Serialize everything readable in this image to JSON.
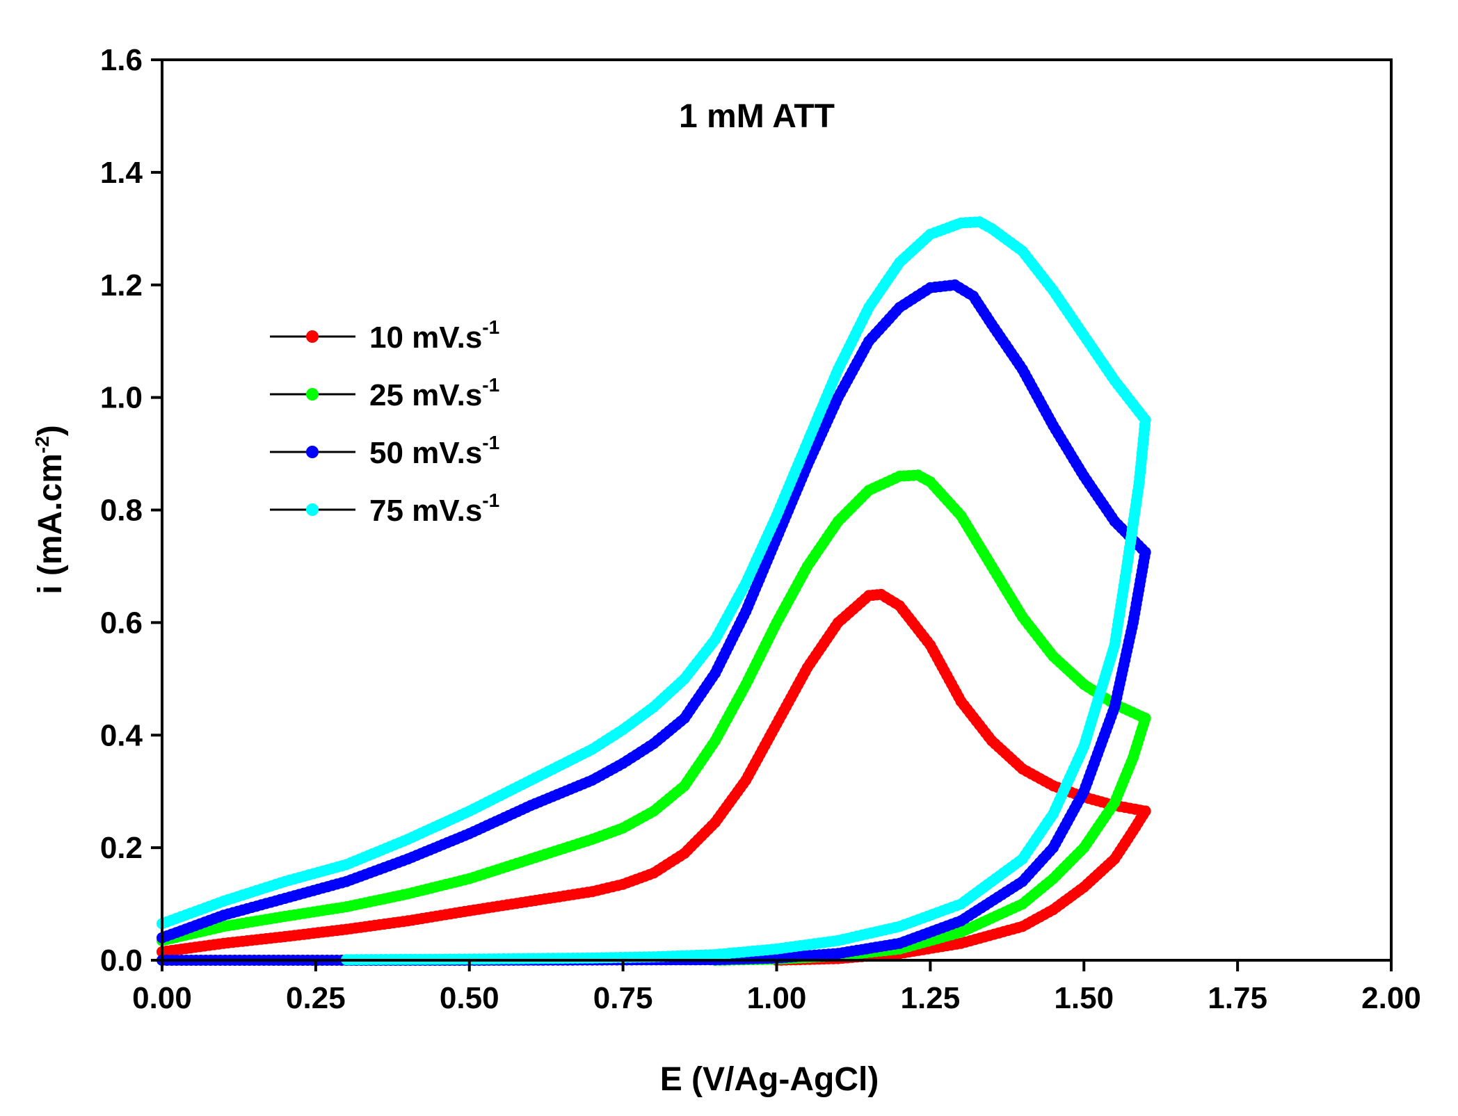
{
  "chart_data": {
    "type": "line",
    "title": "1 mM ATT",
    "xlabel": "E (V/Ag-AgCl)",
    "ylabel": "i (mA.cm",
    "ylabel_unit_exponent": "-2",
    "ylabel_tail": ")",
    "xlim": [
      0.0,
      2.0
    ],
    "ylim": [
      0.0,
      1.6
    ],
    "x_ticks": [
      0.0,
      0.25,
      0.5,
      0.75,
      1.0,
      1.25,
      1.5,
      1.75,
      2.0
    ],
    "x_tick_labels": [
      "0.00",
      "0.25",
      "0.50",
      "0.75",
      "1.00",
      "1.25",
      "1.50",
      "1.75",
      "2.00"
    ],
    "y_ticks": [
      0.0,
      0.2,
      0.4,
      0.6,
      0.8,
      1.0,
      1.2,
      1.4,
      1.6
    ],
    "y_tick_labels": [
      "0.0",
      "0.2",
      "0.4",
      "0.6",
      "0.8",
      "1.0",
      "1.2",
      "1.4",
      "1.6"
    ],
    "grid": false,
    "legend_position": "upper-left",
    "series": [
      {
        "name": "10 mV.s",
        "unit_exponent": "-1",
        "color": "#ff0000",
        "forward": [
          [
            0.0,
            0.015
          ],
          [
            0.1,
            0.03
          ],
          [
            0.2,
            0.042
          ],
          [
            0.3,
            0.055
          ],
          [
            0.4,
            0.07
          ],
          [
            0.5,
            0.088
          ],
          [
            0.6,
            0.105
          ],
          [
            0.7,
            0.122
          ],
          [
            0.75,
            0.135
          ],
          [
            0.8,
            0.155
          ],
          [
            0.85,
            0.19
          ],
          [
            0.9,
            0.245
          ],
          [
            0.95,
            0.32
          ],
          [
            1.0,
            0.42
          ],
          [
            1.05,
            0.52
          ],
          [
            1.1,
            0.6
          ],
          [
            1.15,
            0.648
          ],
          [
            1.17,
            0.65
          ],
          [
            1.2,
            0.63
          ],
          [
            1.25,
            0.56
          ],
          [
            1.3,
            0.46
          ],
          [
            1.35,
            0.39
          ],
          [
            1.4,
            0.34
          ],
          [
            1.45,
            0.31
          ],
          [
            1.5,
            0.29
          ],
          [
            1.55,
            0.275
          ],
          [
            1.6,
            0.265
          ]
        ],
        "reverse": [
          [
            1.6,
            0.265
          ],
          [
            1.58,
            0.23
          ],
          [
            1.55,
            0.18
          ],
          [
            1.5,
            0.13
          ],
          [
            1.45,
            0.09
          ],
          [
            1.4,
            0.06
          ],
          [
            1.3,
            0.03
          ],
          [
            1.2,
            0.012
          ],
          [
            1.1,
            0.003
          ],
          [
            1.0,
            0.0
          ]
        ]
      },
      {
        "name": "25 mV.s",
        "unit_exponent": "-1",
        "color": "#00ff00",
        "forward": [
          [
            0.0,
            0.035
          ],
          [
            0.1,
            0.06
          ],
          [
            0.2,
            0.078
          ],
          [
            0.3,
            0.095
          ],
          [
            0.4,
            0.118
          ],
          [
            0.5,
            0.145
          ],
          [
            0.6,
            0.18
          ],
          [
            0.7,
            0.215
          ],
          [
            0.75,
            0.235
          ],
          [
            0.8,
            0.265
          ],
          [
            0.85,
            0.31
          ],
          [
            0.9,
            0.39
          ],
          [
            0.95,
            0.49
          ],
          [
            1.0,
            0.6
          ],
          [
            1.05,
            0.7
          ],
          [
            1.1,
            0.78
          ],
          [
            1.15,
            0.835
          ],
          [
            1.2,
            0.86
          ],
          [
            1.23,
            0.862
          ],
          [
            1.25,
            0.85
          ],
          [
            1.3,
            0.79
          ],
          [
            1.35,
            0.7
          ],
          [
            1.4,
            0.61
          ],
          [
            1.45,
            0.54
          ],
          [
            1.5,
            0.49
          ],
          [
            1.55,
            0.455
          ],
          [
            1.6,
            0.43
          ]
        ],
        "reverse": [
          [
            1.6,
            0.43
          ],
          [
            1.58,
            0.36
          ],
          [
            1.55,
            0.28
          ],
          [
            1.5,
            0.2
          ],
          [
            1.45,
            0.145
          ],
          [
            1.4,
            0.1
          ],
          [
            1.3,
            0.05
          ],
          [
            1.2,
            0.02
          ],
          [
            1.1,
            0.008
          ],
          [
            1.0,
            0.002
          ],
          [
            0.9,
            0.0
          ]
        ]
      },
      {
        "name": "50 mV.s",
        "unit_exponent": "-1",
        "color": "#0000ff",
        "forward": [
          [
            0.0,
            0.04
          ],
          [
            0.1,
            0.08
          ],
          [
            0.2,
            0.11
          ],
          [
            0.3,
            0.14
          ],
          [
            0.4,
            0.18
          ],
          [
            0.5,
            0.225
          ],
          [
            0.6,
            0.275
          ],
          [
            0.7,
            0.32
          ],
          [
            0.75,
            0.35
          ],
          [
            0.8,
            0.385
          ],
          [
            0.85,
            0.43
          ],
          [
            0.9,
            0.51
          ],
          [
            0.95,
            0.62
          ],
          [
            1.0,
            0.75
          ],
          [
            1.05,
            0.88
          ],
          [
            1.1,
            1.0
          ],
          [
            1.15,
            1.1
          ],
          [
            1.2,
            1.16
          ],
          [
            1.25,
            1.195
          ],
          [
            1.29,
            1.2
          ],
          [
            1.32,
            1.18
          ],
          [
            1.35,
            1.13
          ],
          [
            1.4,
            1.05
          ],
          [
            1.45,
            0.95
          ],
          [
            1.5,
            0.86
          ],
          [
            1.55,
            0.78
          ],
          [
            1.6,
            0.725
          ]
        ],
        "reverse": [
          [
            1.6,
            0.725
          ],
          [
            1.58,
            0.6
          ],
          [
            1.55,
            0.45
          ],
          [
            1.5,
            0.3
          ],
          [
            1.45,
            0.2
          ],
          [
            1.4,
            0.14
          ],
          [
            1.3,
            0.07
          ],
          [
            1.2,
            0.03
          ],
          [
            1.1,
            0.012
          ],
          [
            1.0,
            0.004
          ],
          [
            0.9,
            0.001
          ],
          [
            0.5,
            0.0
          ],
          [
            0.3,
            0.0
          ],
          [
            0.0,
            0.0
          ]
        ]
      },
      {
        "name": "75 mV.s",
        "unit_exponent": "-1",
        "color": "#00ffff",
        "forward": [
          [
            0.0,
            0.065
          ],
          [
            0.1,
            0.105
          ],
          [
            0.2,
            0.14
          ],
          [
            0.3,
            0.17
          ],
          [
            0.4,
            0.215
          ],
          [
            0.5,
            0.265
          ],
          [
            0.6,
            0.32
          ],
          [
            0.7,
            0.375
          ],
          [
            0.75,
            0.41
          ],
          [
            0.8,
            0.45
          ],
          [
            0.85,
            0.5
          ],
          [
            0.9,
            0.57
          ],
          [
            0.95,
            0.67
          ],
          [
            1.0,
            0.79
          ],
          [
            1.05,
            0.92
          ],
          [
            1.1,
            1.05
          ],
          [
            1.15,
            1.16
          ],
          [
            1.2,
            1.24
          ],
          [
            1.25,
            1.29
          ],
          [
            1.3,
            1.31
          ],
          [
            1.33,
            1.312
          ],
          [
            1.35,
            1.3
          ],
          [
            1.4,
            1.26
          ],
          [
            1.45,
            1.19
          ],
          [
            1.5,
            1.11
          ],
          [
            1.55,
            1.03
          ],
          [
            1.6,
            0.96
          ]
        ],
        "reverse": [
          [
            1.6,
            0.96
          ],
          [
            1.59,
            0.85
          ],
          [
            1.57,
            0.7
          ],
          [
            1.55,
            0.56
          ],
          [
            1.5,
            0.38
          ],
          [
            1.45,
            0.26
          ],
          [
            1.4,
            0.18
          ],
          [
            1.3,
            0.1
          ],
          [
            1.2,
            0.06
          ],
          [
            1.1,
            0.035
          ],
          [
            1.0,
            0.02
          ],
          [
            0.9,
            0.01
          ],
          [
            0.8,
            0.006
          ],
          [
            0.7,
            0.004
          ],
          [
            0.5,
            0.002
          ],
          [
            0.3,
            0.001
          ]
        ]
      }
    ]
  }
}
